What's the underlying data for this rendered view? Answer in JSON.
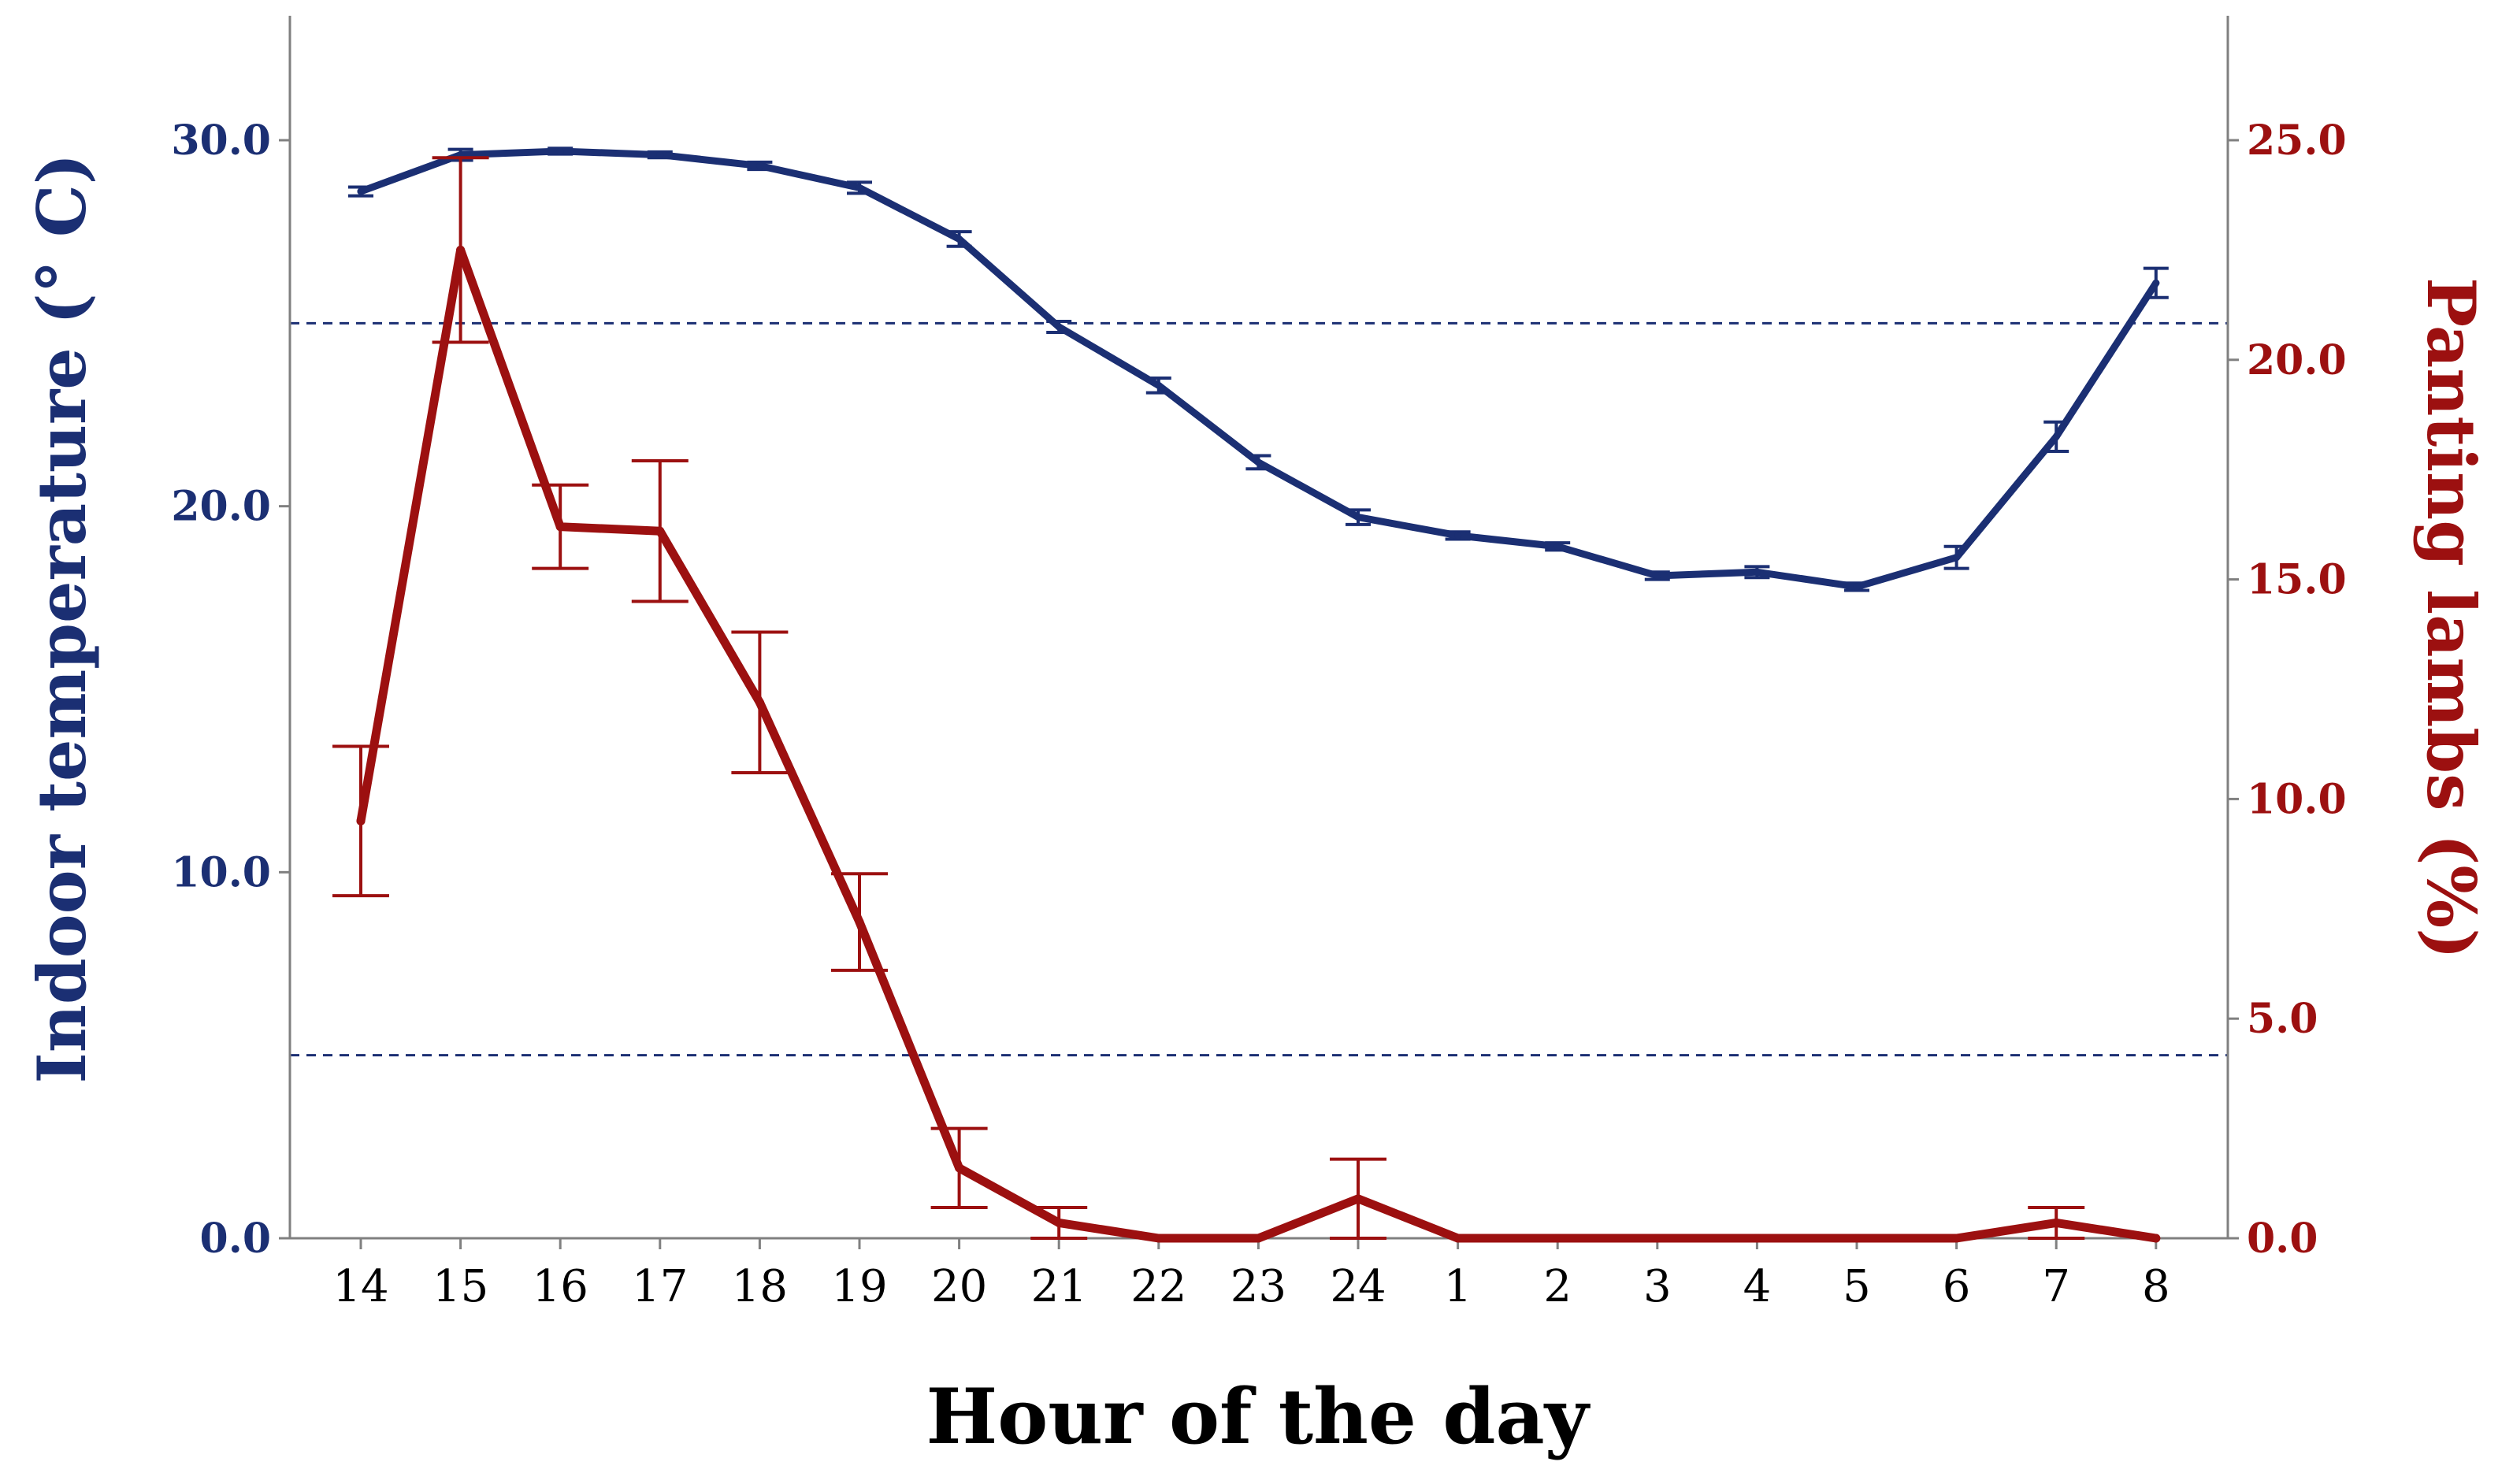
{
  "chart_data": {
    "type": "line",
    "xlabel": "Hour of the day",
    "ylabel_left": "Indoor temperature (° C)",
    "ylabel_right": "Panting lambs (%)",
    "categories": [
      "14",
      "15",
      "16",
      "17",
      "18",
      "19",
      "20",
      "21",
      "22",
      "23",
      "24",
      "1",
      "2",
      "3",
      "4",
      "5",
      "6",
      "7",
      "8"
    ],
    "y_left_ticks": [
      "0.0",
      "10.0",
      "20.0",
      "30.0"
    ],
    "y_right_ticks": [
      "0.0",
      "5.0",
      "10.0",
      "15.0",
      "20.0",
      "25.0"
    ],
    "y_left_lim": [
      0,
      30
    ],
    "y_right_lim": [
      0,
      25
    ],
    "reference_lines_left": [
      25,
      5
    ],
    "grid": false,
    "colors": {
      "temperature": "#1b2f73",
      "panting": "#9c1010",
      "axis": "#808080"
    },
    "series": [
      {
        "axis": "left",
        "values": [
          28.6,
          29.6,
          29.7,
          29.6,
          29.3,
          28.7,
          27.3,
          24.9,
          23.3,
          21.2,
          19.7,
          19.2,
          18.9,
          18.1,
          18.2,
          17.8,
          18.6,
          21.9,
          26.1
        ],
        "errors": [
          0.12,
          0.15,
          0.08,
          0.08,
          0.1,
          0.15,
          0.2,
          0.15,
          0.2,
          0.18,
          0.2,
          0.1,
          0.1,
          0.1,
          0.15,
          0.1,
          0.3,
          0.4,
          0.4
        ]
      },
      {
        "axis": "right",
        "values": [
          9.5,
          22.5,
          16.2,
          16.1,
          12.2,
          7.2,
          1.6,
          0.35,
          0.0,
          0.0,
          0.9,
          0.0,
          0.0,
          0.0,
          0.0,
          0.0,
          0.0,
          0.35,
          0.0
        ],
        "errors": [
          1.7,
          2.1,
          0.95,
          1.6,
          1.6,
          1.1,
          0.9,
          0.35,
          0.0,
          0.0,
          0.9,
          0.0,
          0.0,
          0.0,
          0.0,
          0.0,
          0.0,
          0.35,
          0.0
        ]
      }
    ]
  }
}
